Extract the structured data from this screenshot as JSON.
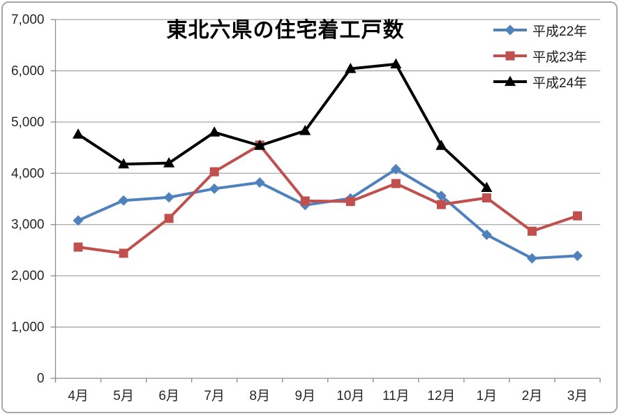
{
  "chart_data": {
    "type": "line",
    "title": "東北六県の住宅着工戸数",
    "categories": [
      "4月",
      "5月",
      "6月",
      "7月",
      "8月",
      "9月",
      "10月",
      "11月",
      "12月",
      "1月",
      "2月",
      "3月"
    ],
    "series": [
      {
        "name": "平成22年",
        "color": "#4F81BD",
        "marker": "diamond",
        "values": [
          3080,
          3470,
          3530,
          3700,
          3820,
          3380,
          3510,
          4080,
          3560,
          2800,
          2340,
          2390
        ]
      },
      {
        "name": "平成23年",
        "color": "#C0504D",
        "marker": "square",
        "values": [
          2560,
          2440,
          3120,
          4030,
          4550,
          3460,
          3450,
          3800,
          3390,
          3520,
          2870,
          3170
        ]
      },
      {
        "name": "平成24年",
        "color": "#000000",
        "marker": "triangle",
        "values": [
          4760,
          4180,
          4200,
          4800,
          4540,
          4830,
          6040,
          6130,
          4540,
          3720,
          null,
          null
        ]
      }
    ],
    "ylim": [
      0,
      7000
    ],
    "yticks": [
      {
        "value": 0,
        "label": "0"
      },
      {
        "value": 1000,
        "label": "1,000"
      },
      {
        "value": 2000,
        "label": "2,000"
      },
      {
        "value": 3000,
        "label": "3,000"
      },
      {
        "value": 4000,
        "label": "4,000"
      },
      {
        "value": 5000,
        "label": "5,000"
      },
      {
        "value": 6000,
        "label": "6,000"
      },
      {
        "value": 7000,
        "label": "7,000"
      }
    ],
    "grid": true,
    "legend_position": "top-right"
  },
  "colors": {
    "grid": "#a6a6a6",
    "axis": "#8c8c8c",
    "tick": "#8c8c8c",
    "axis_text": "#262626",
    "frame_border": "#a6a6a6",
    "background": "#ffffff"
  }
}
